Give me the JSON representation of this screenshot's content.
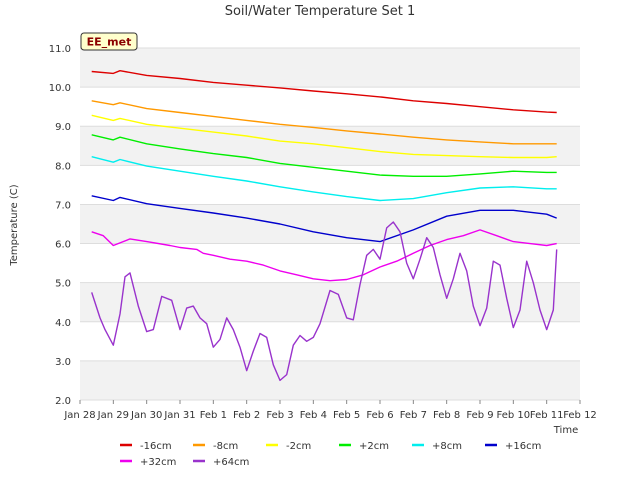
{
  "chart_data": {
    "type": "line",
    "title": "Soil/Water Temperature Set 1",
    "xlabel": "Time",
    "ylabel": "Temperature (C)",
    "badge": "EE_met",
    "ylim": [
      2.0,
      11.0
    ],
    "xlim": [
      0,
      15
    ],
    "yticks": [
      "2.0",
      "3.0",
      "4.0",
      "5.0",
      "6.0",
      "7.0",
      "8.0",
      "9.0",
      "10.0",
      "11.0"
    ],
    "xticks": [
      "Jan 28",
      "Jan 29",
      "Jan 30",
      "Jan 31",
      "Feb 1",
      "Feb 2",
      "Feb 3",
      "Feb 4",
      "Feb 5",
      "Feb 6",
      "Feb 7",
      "Feb 8",
      "Feb 9",
      "Feb 10",
      "Feb 11",
      "Feb 12"
    ],
    "grid": "horizontal bands",
    "legend_position": "bottom",
    "series": [
      {
        "name": "-16cm",
        "color": "#dd0000",
        "x": [
          0.35,
          1,
          1.2,
          2,
          3,
          4,
          5,
          6,
          7,
          8,
          9,
          10,
          11,
          12,
          13,
          14,
          14.3
        ],
        "y": [
          10.4,
          10.35,
          10.42,
          10.3,
          10.22,
          10.12,
          10.05,
          9.98,
          9.9,
          9.83,
          9.75,
          9.65,
          9.58,
          9.5,
          9.42,
          9.36,
          9.35
        ]
      },
      {
        "name": "-8cm",
        "color": "#ff9900",
        "x": [
          0.35,
          1,
          1.2,
          2,
          3,
          4,
          5,
          6,
          7,
          8,
          9,
          10,
          11,
          12,
          13,
          14,
          14.3
        ],
        "y": [
          9.65,
          9.55,
          9.6,
          9.45,
          9.35,
          9.25,
          9.15,
          9.05,
          8.97,
          8.88,
          8.8,
          8.72,
          8.65,
          8.6,
          8.55,
          8.55,
          8.55
        ]
      },
      {
        "name": "-2cm",
        "color": "#ffff00",
        "x": [
          0.35,
          1,
          1.2,
          2,
          3,
          4,
          5,
          6,
          7,
          8,
          9,
          10,
          11,
          12,
          13,
          14,
          14.3
        ],
        "y": [
          9.28,
          9.15,
          9.2,
          9.05,
          8.95,
          8.85,
          8.75,
          8.62,
          8.55,
          8.45,
          8.35,
          8.28,
          8.25,
          8.22,
          8.2,
          8.2,
          8.22
        ]
      },
      {
        "name": "+2cm",
        "color": "#00ee00",
        "x": [
          0.35,
          1,
          1.2,
          2,
          3,
          4,
          5,
          6,
          7,
          8,
          9,
          10,
          11,
          12,
          13,
          14,
          14.3
        ],
        "y": [
          8.78,
          8.65,
          8.72,
          8.55,
          8.42,
          8.3,
          8.2,
          8.05,
          7.95,
          7.85,
          7.75,
          7.72,
          7.72,
          7.78,
          7.85,
          7.82,
          7.82
        ]
      },
      {
        "name": "+8cm",
        "color": "#00eeee",
        "x": [
          0.35,
          1,
          1.2,
          2,
          3,
          4,
          5,
          6,
          7,
          8,
          9,
          10,
          11,
          12,
          13,
          14,
          14.3
        ],
        "y": [
          8.22,
          8.08,
          8.15,
          7.98,
          7.85,
          7.72,
          7.6,
          7.45,
          7.32,
          7.2,
          7.1,
          7.15,
          7.3,
          7.42,
          7.45,
          7.4,
          7.4
        ]
      },
      {
        "name": "+16cm",
        "color": "#0000cc",
        "x": [
          0.35,
          1,
          1.2,
          2,
          3,
          4,
          5,
          6,
          7,
          8,
          9,
          10,
          11,
          12,
          13,
          14,
          14.3
        ],
        "y": [
          7.22,
          7.1,
          7.18,
          7.02,
          6.9,
          6.78,
          6.65,
          6.5,
          6.3,
          6.15,
          6.05,
          6.35,
          6.7,
          6.85,
          6.85,
          6.75,
          6.65
        ]
      },
      {
        "name": "+32cm",
        "color": "#ee00ee",
        "x": [
          0.35,
          0.7,
          1,
          1.5,
          2,
          2.7,
          3,
          3.5,
          3.7,
          4,
          4.5,
          5,
          5.5,
          6,
          6.5,
          7,
          7.5,
          8,
          8.5,
          9,
          9.5,
          10,
          10.5,
          11,
          11.5,
          12,
          12.5,
          13,
          13.5,
          14,
          14.3
        ],
        "y": [
          6.3,
          6.2,
          5.95,
          6.12,
          6.05,
          5.95,
          5.9,
          5.85,
          5.75,
          5.7,
          5.6,
          5.55,
          5.45,
          5.3,
          5.2,
          5.1,
          5.05,
          5.08,
          5.2,
          5.4,
          5.55,
          5.75,
          5.95,
          6.1,
          6.2,
          6.35,
          6.2,
          6.05,
          6.0,
          5.95,
          6.0
        ]
      },
      {
        "name": "+64cm",
        "color": "#9933cc",
        "x": [
          0.35,
          0.6,
          0.75,
          1,
          1.2,
          1.35,
          1.5,
          1.75,
          2,
          2.2,
          2.45,
          2.75,
          3,
          3.2,
          3.4,
          3.6,
          3.8,
          4,
          4.2,
          4.4,
          4.6,
          4.8,
          5,
          5.2,
          5.4,
          5.6,
          5.8,
          6,
          6.2,
          6.4,
          6.6,
          6.8,
          7,
          7.2,
          7.5,
          7.75,
          8,
          8.2,
          8.4,
          8.6,
          8.8,
          9,
          9.2,
          9.4,
          9.6,
          9.8,
          10,
          10.2,
          10.4,
          10.6,
          10.8,
          11,
          11.2,
          11.4,
          11.6,
          11.8,
          12,
          12.2,
          12.4,
          12.6,
          12.8,
          13,
          13.2,
          13.4,
          13.6,
          13.8,
          14,
          14.2,
          14.3
        ],
        "y": [
          4.75,
          4.1,
          3.8,
          3.4,
          4.2,
          5.15,
          5.25,
          4.4,
          3.75,
          3.8,
          4.65,
          4.55,
          3.8,
          4.35,
          4.4,
          4.1,
          3.95,
          3.35,
          3.55,
          4.1,
          3.8,
          3.35,
          2.75,
          3.25,
          3.7,
          3.6,
          2.9,
          2.5,
          2.65,
          3.4,
          3.65,
          3.5,
          3.6,
          3.95,
          4.8,
          4.7,
          4.1,
          4.05,
          4.95,
          5.7,
          5.85,
          5.6,
          6.4,
          6.55,
          6.3,
          5.5,
          5.1,
          5.6,
          6.15,
          5.9,
          5.2,
          4.6,
          5.1,
          5.75,
          5.3,
          4.4,
          3.9,
          4.35,
          5.55,
          5.45,
          4.6,
          3.85,
          4.3,
          5.55,
          5.0,
          4.3,
          3.8,
          4.3,
          5.85
        ]
      }
    ]
  }
}
